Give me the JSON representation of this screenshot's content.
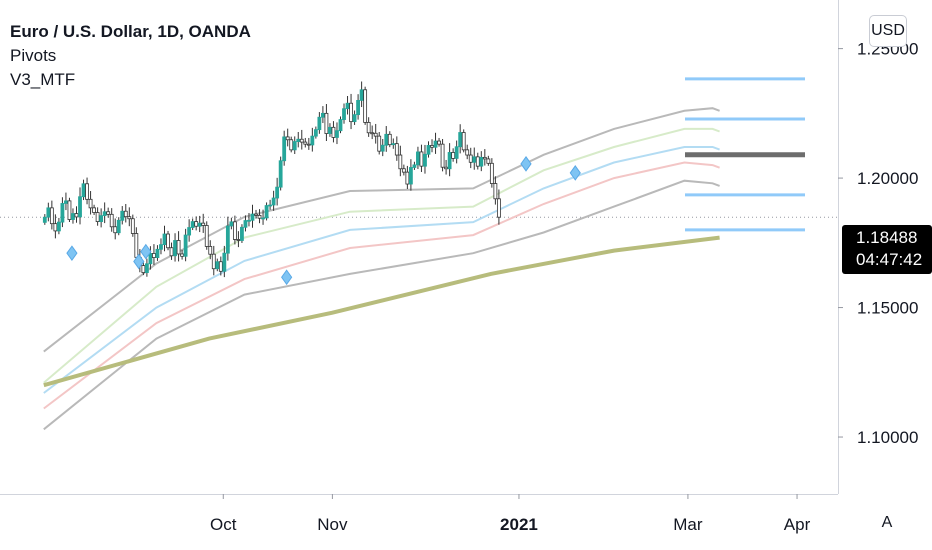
{
  "legend": {
    "title": "Euro / U.S. Dollar, 1D, OANDA",
    "indicator_1": "Pivots",
    "indicator_2": "V3_MTF"
  },
  "currency_button": "USD",
  "auto_button": "A",
  "price_tag": {
    "price": "1.18488",
    "countdown": "04:47:42"
  },
  "chart_data": {
    "type": "candlestick",
    "symbol": "EURUSD",
    "timeframe": "1D",
    "last_price": 1.18488,
    "y_range": [
      1.078,
      1.268
    ],
    "y_ticks": [
      {
        "value": 1.25,
        "label": "1.25000"
      },
      {
        "value": 1.2,
        "label": "1.20000"
      },
      {
        "value": 1.15,
        "label": "1.15000"
      },
      {
        "value": 1.1,
        "label": "1.10000"
      }
    ],
    "x_ticks": [
      {
        "day": 64,
        "label": "Oct",
        "bold": false
      },
      {
        "day": 95,
        "label": "Nov",
        "bold": false
      },
      {
        "day": 148,
        "label": "2021",
        "bold": true
      },
      {
        "day": 196,
        "label": "Mar",
        "bold": false
      },
      {
        "day": 227,
        "label": "Apr",
        "bold": false
      }
    ],
    "x_range_days": [
      13,
      261
    ],
    "closes": [
      1.1849,
      1.1885,
      1.1824,
      1.1796,
      1.183,
      1.1902,
      1.1912,
      1.184,
      1.1863,
      1.185,
      1.1928,
      1.1978,
      1.1918,
      1.1885,
      1.1867,
      1.1832,
      1.1855,
      1.187,
      1.186,
      1.1812,
      1.1789,
      1.1837,
      1.1872,
      1.1851,
      1.1843,
      1.1786,
      1.1694,
      1.1662,
      1.1635,
      1.1669,
      1.1709,
      1.1693,
      1.1725,
      1.1743,
      1.1784,
      1.1731,
      1.17,
      1.1759,
      1.1707,
      1.1698,
      1.178,
      1.1809,
      1.1832,
      1.1814,
      1.1826,
      1.1817,
      1.1736,
      1.1706,
      1.165,
      1.1677,
      1.164,
      1.171,
      1.1815,
      1.1831,
      1.1763,
      1.1759,
      1.181,
      1.1836,
      1.1837,
      1.1861,
      1.1856,
      1.1845,
      1.1846,
      1.1894,
      1.1896,
      1.1923,
      1.1965,
      1.2067,
      1.2159,
      1.2148,
      1.2109,
      1.2141,
      1.215,
      1.2139,
      1.2131,
      1.2128,
      1.2162,
      1.2187,
      1.2235,
      1.225,
      1.2172,
      1.2196,
      1.2157,
      1.2183,
      1.2226,
      1.2268,
      1.2289,
      1.2218,
      1.2245,
      1.23,
      1.2341,
      1.2215,
      1.2175,
      1.2173,
      1.2162,
      1.2104,
      1.2127,
      1.2169,
      1.2129,
      1.2133,
      1.2089,
      1.2036,
      1.2023,
      1.1977,
      1.2041,
      1.2051,
      1.2101,
      1.2046,
      1.2092,
      1.2126,
      1.2119,
      1.2143,
      1.2131,
      1.2042,
      1.2036,
      1.2099,
      1.2076,
      1.2121,
      1.2176,
      1.2109,
      1.2089,
      1.2061,
      1.2082,
      1.2046,
      1.208,
      1.2074,
      1.2057,
      1.1979,
      1.192,
      1.1849
    ],
    "pivot_levels": [
      {
        "value": 1.2383,
        "color": "#90caf9"
      },
      {
        "value": 1.2228,
        "color": "#90caf9"
      },
      {
        "value": 1.209,
        "color": "#6d6d6d"
      },
      {
        "value": 1.1935,
        "color": "#90caf9"
      },
      {
        "value": 1.18,
        "color": "#90caf9"
      }
    ],
    "markers": [
      {
        "day": 21,
        "value": 1.171
      },
      {
        "day": 40,
        "value": 1.1678
      },
      {
        "day": 42,
        "value": 1.1716
      },
      {
        "day": 82,
        "value": 1.1617
      },
      {
        "day": 150,
        "value": 1.2055
      },
      {
        "day": 164,
        "value": 1.202
      }
    ],
    "ma_200": [
      {
        "day": 13,
        "value": 1.12
      },
      {
        "day": 60,
        "value": 1.138
      },
      {
        "day": 95,
        "value": 1.148
      },
      {
        "day": 140,
        "value": 1.163
      },
      {
        "day": 175,
        "value": 1.172
      },
      {
        "day": 205,
        "value": 1.177
      }
    ],
    "bands": [
      {
        "color": "#b9b9b9",
        "points": [
          [
            13,
            1.133
          ],
          [
            45,
            1.167
          ],
          [
            70,
            1.185
          ],
          [
            100,
            1.195
          ],
          [
            135,
            1.196
          ],
          [
            155,
            1.209
          ],
          [
            175,
            1.219
          ],
          [
            195,
            1.226
          ],
          [
            203,
            1.227
          ],
          [
            205,
            1.226
          ]
        ]
      },
      {
        "color": "#d7ebc9",
        "points": [
          [
            13,
            1.121
          ],
          [
            45,
            1.158
          ],
          [
            70,
            1.177
          ],
          [
            100,
            1.187
          ],
          [
            135,
            1.189
          ],
          [
            155,
            1.203
          ],
          [
            175,
            1.212
          ],
          [
            195,
            1.219
          ],
          [
            203,
            1.219
          ],
          [
            205,
            1.218
          ]
        ]
      },
      {
        "color": "#b3dcf3",
        "points": [
          [
            13,
            1.117
          ],
          [
            45,
            1.15
          ],
          [
            70,
            1.168
          ],
          [
            100,
            1.18
          ],
          [
            135,
            1.183
          ],
          [
            155,
            1.196
          ],
          [
            175,
            1.206
          ],
          [
            195,
            1.212
          ],
          [
            203,
            1.212
          ],
          [
            205,
            1.211
          ]
        ]
      },
      {
        "color": "#f3c6c6",
        "points": [
          [
            13,
            1.111
          ],
          [
            45,
            1.144
          ],
          [
            70,
            1.161
          ],
          [
            100,
            1.173
          ],
          [
            135,
            1.178
          ],
          [
            155,
            1.19
          ],
          [
            175,
            1.2
          ],
          [
            195,
            1.206
          ],
          [
            203,
            1.205
          ],
          [
            205,
            1.204
          ]
        ]
      },
      {
        "color": "#b9b9b9",
        "points": [
          [
            13,
            1.103
          ],
          [
            45,
            1.138
          ],
          [
            70,
            1.155
          ],
          [
            100,
            1.163
          ],
          [
            135,
            1.171
          ],
          [
            155,
            1.179
          ],
          [
            175,
            1.189
          ],
          [
            195,
            1.199
          ],
          [
            203,
            1.198
          ],
          [
            205,
            1.197
          ]
        ]
      }
    ],
    "colors": {
      "up": "#26a69a",
      "down": "#555555",
      "ma_200": "#b7bc7c",
      "marker": "#7ec4f3"
    }
  }
}
